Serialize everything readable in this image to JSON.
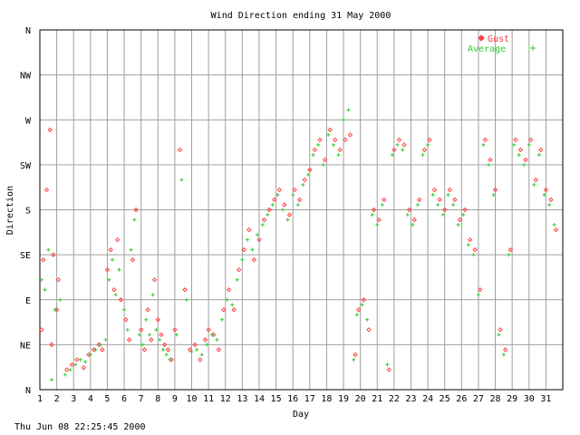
{
  "chart_data": {
    "type": "scatter",
    "title": "Wind Direction ending 31 May 2000",
    "xlabel": "Day",
    "ylabel": "Direction",
    "timestamp": "Thu Jun 08 22:25:45 2000",
    "x_ticks": [
      "1",
      "2",
      "3",
      "4",
      "5",
      "6",
      "7",
      "8",
      "9",
      "10",
      "11",
      "12",
      "13",
      "14",
      "15",
      "16",
      "17",
      "18",
      "19",
      "20",
      "21",
      "22",
      "23",
      "24",
      "25",
      "26",
      "27",
      "28",
      "29",
      "30",
      "31"
    ],
    "y_ticks": [
      "N",
      "NE",
      "E",
      "SE",
      "S",
      "SW",
      "W",
      "NW",
      "N"
    ],
    "xlim": [
      1,
      32
    ],
    "ylim": [
      0,
      360
    ],
    "grid": true,
    "legend_position": "top-right",
    "colors": {
      "gust": "#ff4040",
      "average": "#33cc33",
      "grid": "#a0a0a0"
    },
    "series": [
      {
        "name": "Gust",
        "marker": "diamond",
        "points": [
          [
            1.1,
            60
          ],
          [
            1.2,
            130
          ],
          [
            1.4,
            200
          ],
          [
            1.6,
            260
          ],
          [
            1.7,
            45
          ],
          [
            1.8,
            135
          ],
          [
            2.0,
            80
          ],
          [
            2.1,
            110
          ],
          [
            2.6,
            20
          ],
          [
            2.9,
            25
          ],
          [
            3.2,
            30
          ],
          [
            3.6,
            22
          ],
          [
            3.9,
            35
          ],
          [
            4.2,
            40
          ],
          [
            4.5,
            45
          ],
          [
            4.7,
            40
          ],
          [
            5.0,
            120
          ],
          [
            5.2,
            140
          ],
          [
            5.4,
            100
          ],
          [
            5.6,
            150
          ],
          [
            5.8,
            90
          ],
          [
            6.1,
            70
          ],
          [
            6.3,
            50
          ],
          [
            6.5,
            130
          ],
          [
            6.7,
            180
          ],
          [
            7.0,
            60
          ],
          [
            7.2,
            40
          ],
          [
            7.4,
            80
          ],
          [
            7.6,
            50
          ],
          [
            7.8,
            110
          ],
          [
            8.0,
            70
          ],
          [
            8.2,
            55
          ],
          [
            8.4,
            45
          ],
          [
            8.6,
            40
          ],
          [
            8.8,
            30
          ],
          [
            9.0,
            60
          ],
          [
            9.3,
            240
          ],
          [
            9.6,
            100
          ],
          [
            9.9,
            40
          ],
          [
            10.2,
            45
          ],
          [
            10.5,
            30
          ],
          [
            10.8,
            50
          ],
          [
            11.0,
            60
          ],
          [
            11.3,
            55
          ],
          [
            11.6,
            40
          ],
          [
            11.9,
            80
          ],
          [
            12.2,
            100
          ],
          [
            12.5,
            80
          ],
          [
            12.8,
            120
          ],
          [
            13.1,
            140
          ],
          [
            13.4,
            160
          ],
          [
            13.7,
            130
          ],
          [
            14.0,
            150
          ],
          [
            14.3,
            170
          ],
          [
            14.6,
            180
          ],
          [
            14.9,
            190
          ],
          [
            15.2,
            200
          ],
          [
            15.5,
            185
          ],
          [
            15.8,
            175
          ],
          [
            16.1,
            200
          ],
          [
            16.4,
            190
          ],
          [
            16.7,
            210
          ],
          [
            17.0,
            220
          ],
          [
            17.3,
            240
          ],
          [
            17.6,
            250
          ],
          [
            17.9,
            230
          ],
          [
            18.2,
            260
          ],
          [
            18.5,
            250
          ],
          [
            18.8,
            240
          ],
          [
            19.1,
            250
          ],
          [
            19.4,
            255
          ],
          [
            19.7,
            35
          ],
          [
            19.9,
            80
          ],
          [
            20.2,
            90
          ],
          [
            20.5,
            60
          ],
          [
            20.8,
            180
          ],
          [
            21.1,
            170
          ],
          [
            21.4,
            190
          ],
          [
            21.7,
            20
          ],
          [
            22.0,
            240
          ],
          [
            22.3,
            250
          ],
          [
            22.6,
            245
          ],
          [
            22.9,
            180
          ],
          [
            23.2,
            170
          ],
          [
            23.5,
            190
          ],
          [
            23.8,
            240
          ],
          [
            24.1,
            250
          ],
          [
            24.4,
            200
          ],
          [
            24.7,
            190
          ],
          [
            25.0,
            180
          ],
          [
            25.3,
            200
          ],
          [
            25.6,
            190
          ],
          [
            25.9,
            170
          ],
          [
            26.2,
            180
          ],
          [
            26.5,
            150
          ],
          [
            26.8,
            140
          ],
          [
            27.1,
            100
          ],
          [
            27.4,
            250
          ],
          [
            27.7,
            230
          ],
          [
            28.0,
            200
          ],
          [
            28.3,
            60
          ],
          [
            28.6,
            40
          ],
          [
            28.9,
            140
          ],
          [
            29.2,
            250
          ],
          [
            29.5,
            240
          ],
          [
            29.8,
            230
          ],
          [
            30.1,
            250
          ],
          [
            30.4,
            210
          ],
          [
            30.7,
            240
          ],
          [
            31.0,
            200
          ],
          [
            31.3,
            190
          ],
          [
            31.6,
            160
          ]
        ]
      },
      {
        "name": "Average",
        "marker": "plus",
        "points": [
          [
            1.1,
            110
          ],
          [
            1.3,
            100
          ],
          [
            1.5,
            140
          ],
          [
            1.7,
            10
          ],
          [
            1.9,
            80
          ],
          [
            2.2,
            90
          ],
          [
            2.5,
            15
          ],
          [
            2.8,
            20
          ],
          [
            3.1,
            25
          ],
          [
            3.4,
            30
          ],
          [
            3.7,
            28
          ],
          [
            4.0,
            35
          ],
          [
            4.3,
            40
          ],
          [
            4.6,
            45
          ],
          [
            4.9,
            50
          ],
          [
            5.1,
            110
          ],
          [
            5.3,
            130
          ],
          [
            5.5,
            95
          ],
          [
            5.7,
            120
          ],
          [
            6.0,
            80
          ],
          [
            6.2,
            60
          ],
          [
            6.4,
            140
          ],
          [
            6.6,
            170
          ],
          [
            6.9,
            55
          ],
          [
            7.1,
            45
          ],
          [
            7.3,
            70
          ],
          [
            7.5,
            55
          ],
          [
            7.7,
            95
          ],
          [
            7.9,
            60
          ],
          [
            8.1,
            50
          ],
          [
            8.3,
            40
          ],
          [
            8.5,
            35
          ],
          [
            8.7,
            30
          ],
          [
            9.1,
            55
          ],
          [
            9.4,
            210
          ],
          [
            9.7,
            90
          ],
          [
            10.0,
            38
          ],
          [
            10.3,
            40
          ],
          [
            10.6,
            35
          ],
          [
            10.9,
            45
          ],
          [
            11.2,
            55
          ],
          [
            11.5,
            50
          ],
          [
            11.8,
            70
          ],
          [
            12.1,
            90
          ],
          [
            12.4,
            85
          ],
          [
            12.7,
            110
          ],
          [
            13.0,
            130
          ],
          [
            13.3,
            150
          ],
          [
            13.6,
            140
          ],
          [
            13.9,
            155
          ],
          [
            14.2,
            165
          ],
          [
            14.5,
            175
          ],
          [
            14.8,
            185
          ],
          [
            15.1,
            195
          ],
          [
            15.4,
            180
          ],
          [
            15.7,
            170
          ],
          [
            16.0,
            195
          ],
          [
            16.3,
            185
          ],
          [
            16.6,
            205
          ],
          [
            16.9,
            215
          ],
          [
            17.2,
            235
          ],
          [
            17.5,
            245
          ],
          [
            17.8,
            225
          ],
          [
            18.1,
            255
          ],
          [
            18.4,
            245
          ],
          [
            18.7,
            235
          ],
          [
            19.0,
            270
          ],
          [
            19.3,
            280
          ],
          [
            19.6,
            30
          ],
          [
            19.8,
            75
          ],
          [
            20.1,
            85
          ],
          [
            20.4,
            70
          ],
          [
            20.7,
            175
          ],
          [
            21.0,
            165
          ],
          [
            21.3,
            185
          ],
          [
            21.6,
            25
          ],
          [
            21.9,
            235
          ],
          [
            22.2,
            245
          ],
          [
            22.5,
            240
          ],
          [
            22.8,
            175
          ],
          [
            23.1,
            165
          ],
          [
            23.4,
            185
          ],
          [
            23.7,
            235
          ],
          [
            24.0,
            245
          ],
          [
            24.3,
            195
          ],
          [
            24.6,
            185
          ],
          [
            24.9,
            175
          ],
          [
            25.2,
            195
          ],
          [
            25.5,
            185
          ],
          [
            25.8,
            165
          ],
          [
            26.1,
            175
          ],
          [
            26.4,
            145
          ],
          [
            26.7,
            135
          ],
          [
            27.0,
            95
          ],
          [
            27.3,
            245
          ],
          [
            27.6,
            225
          ],
          [
            27.9,
            195
          ],
          [
            28.2,
            55
          ],
          [
            28.5,
            35
          ],
          [
            28.8,
            135
          ],
          [
            29.1,
            245
          ],
          [
            29.4,
            235
          ],
          [
            29.7,
            225
          ],
          [
            30.0,
            245
          ],
          [
            30.3,
            205
          ],
          [
            30.6,
            235
          ],
          [
            30.9,
            195
          ],
          [
            31.2,
            185
          ],
          [
            31.5,
            165
          ]
        ]
      }
    ]
  }
}
